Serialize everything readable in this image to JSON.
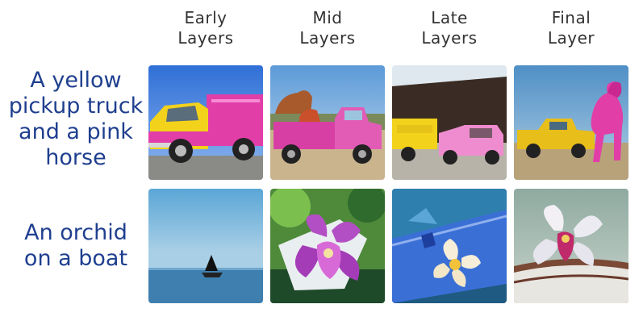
{
  "columns": [
    {
      "line1": "Early",
      "line2": "Layers"
    },
    {
      "line1": "Mid",
      "line2": "Layers"
    },
    {
      "line1": "Late",
      "line2": "Layers"
    },
    {
      "line1": "Final",
      "line2": "Layer"
    }
  ],
  "rows": [
    {
      "lines": [
        "A yellow",
        "pickup truck",
        "and a pink",
        "horse"
      ]
    },
    {
      "lines": [
        "An orchid",
        "on a boat"
      ]
    }
  ],
  "colors": {
    "label_text": "#1f3f8f",
    "header_text": "#333333",
    "truck_yellow": "#f2d21a",
    "horse_pink": "#e23ea8",
    "orchid_purple": "#b34fc4",
    "sea_blue": "#5a9cc9"
  }
}
